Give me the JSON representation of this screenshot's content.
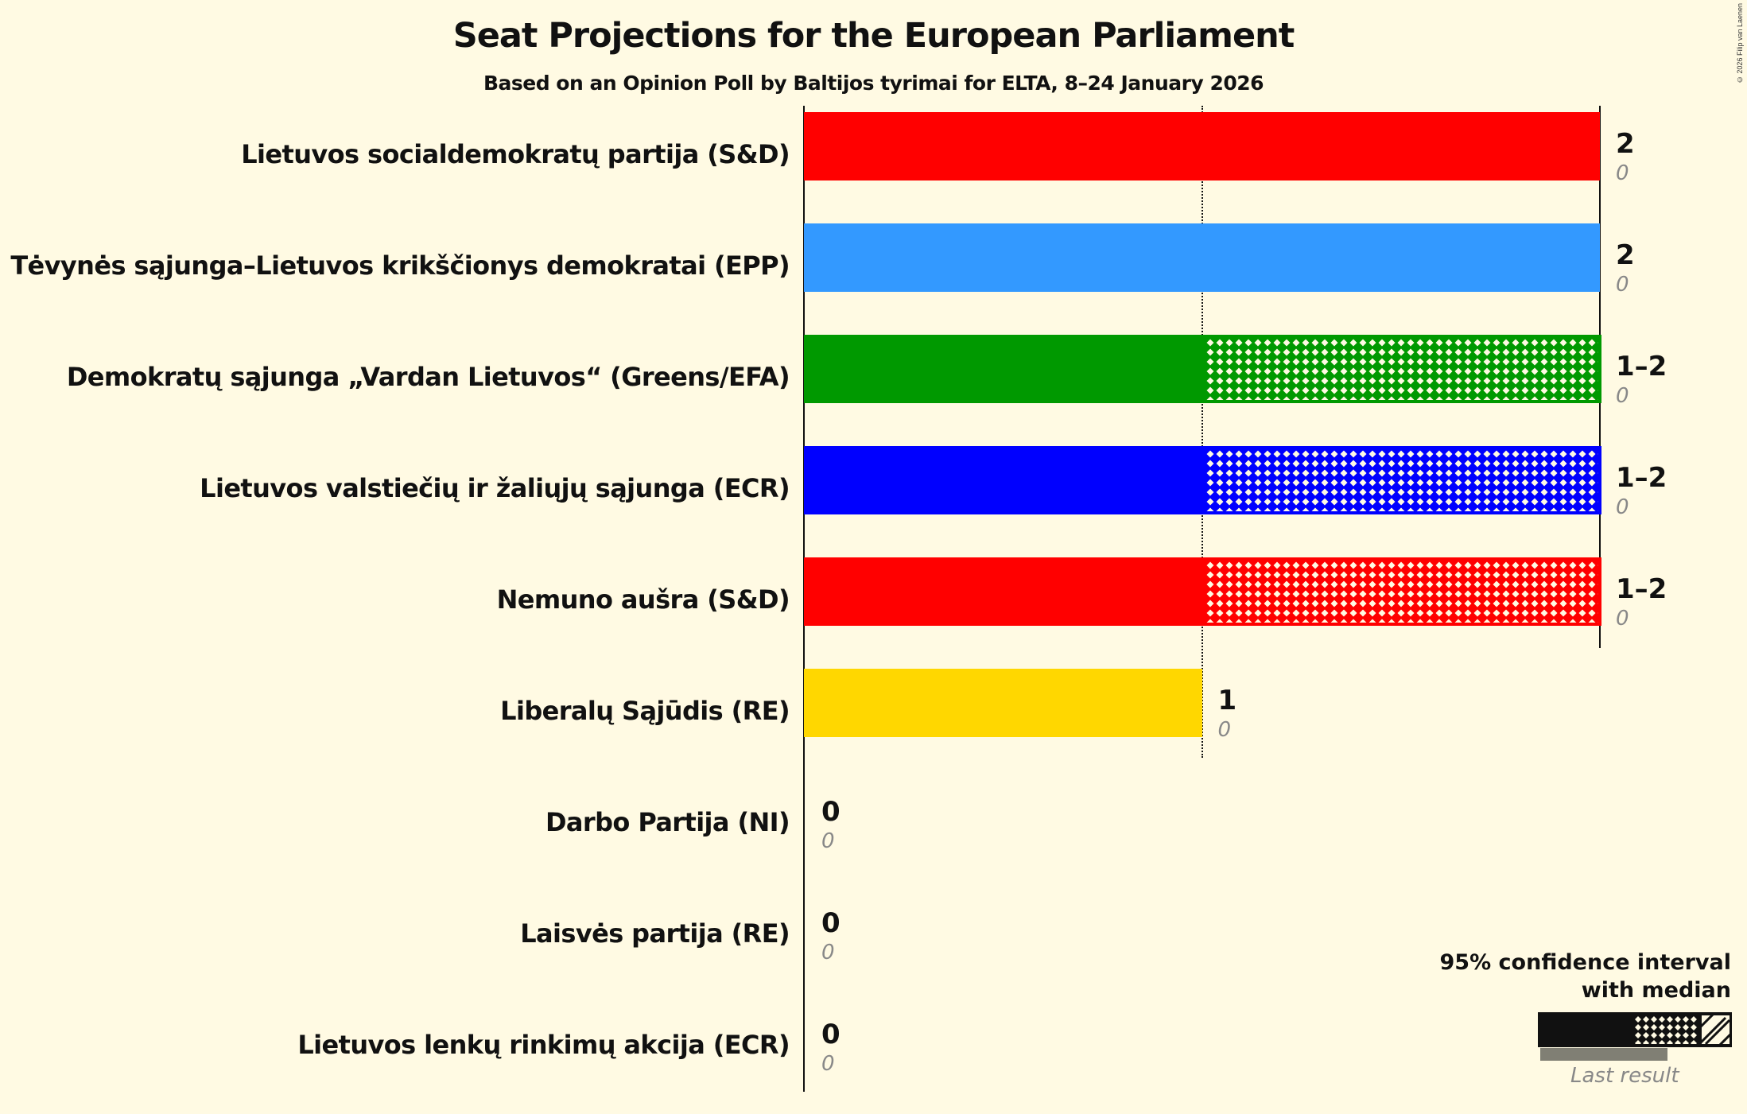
{
  "title": "Seat Projections for the European Parliament",
  "subtitle": "Based on an Opinion Poll by Baltijos tyrimai for ELTA, 8–24 January 2026",
  "copyright": "© 2026 Filip van Laenen",
  "legend": {
    "title_line1": "95% confidence interval",
    "title_line2": "with median",
    "last_result_label": "Last result"
  },
  "parties": [
    {
      "name": "Lietuvos socialdemokratų partija (S&D)",
      "range": "2",
      "last": "0",
      "color": "#ff0000",
      "low": 2,
      "high": 2
    },
    {
      "name": "Tėvynės sąjunga–Lietuvos krikščionys demokratai (EPP)",
      "range": "2",
      "last": "0",
      "color": "#3399ff",
      "low": 2,
      "high": 2
    },
    {
      "name": "Demokratų sąjunga „Vardan Lietuvos“ (Greens/EFA)",
      "range": "1–2",
      "last": "0",
      "color": "#009900",
      "low": 1,
      "high": 2
    },
    {
      "name": "Lietuvos valstiečių ir žaliųjų sąjunga (ECR)",
      "range": "1–2",
      "last": "0",
      "color": "#0000ff",
      "low": 1,
      "high": 2
    },
    {
      "name": "Nemuno aušra (S&D)",
      "range": "1–2",
      "last": "0",
      "color": "#ff0000",
      "low": 1,
      "high": 2
    },
    {
      "name": "Liberalų Sąjūdis (RE)",
      "range": "1",
      "last": "0",
      "color": "#ffd700",
      "low": 1,
      "high": 1
    },
    {
      "name": "Darbo Partija (NI)",
      "range": "0",
      "last": "0",
      "color": "#888888",
      "low": 0,
      "high": 0
    },
    {
      "name": "Laisvės partija (RE)",
      "range": "0",
      "last": "0",
      "color": "#888888",
      "low": 0,
      "high": 0
    },
    {
      "name": "Lietuvos lenkų rinkimų akcija (ECR)",
      "range": "0",
      "last": "0",
      "color": "#888888",
      "low": 0,
      "high": 0
    }
  ],
  "chart_data": {
    "type": "bar",
    "orientation": "horizontal",
    "title": "Seat Projections for the European Parliament",
    "subtitle": "Based on an Opinion Poll by Baltijos tyrimai for ELTA, 8–24 January 2026",
    "categories": [
      "Lietuvos socialdemokratų partija (S&D)",
      "Tėvynės sąjunga–Lietuvos krikščionys demokratai (EPP)",
      "Demokratų sąjunga „Vardan Lietuvos“ (Greens/EFA)",
      "Lietuvos valstiečių ir žaliųjų sąjunga (ECR)",
      "Nemuno aušra (S&D)",
      "Liberalų Sąjūdis (RE)",
      "Darbo Partija (NI)",
      "Laisvės partija (RE)",
      "Lietuvos lenkų rinkimų akcija (ECR)"
    ],
    "series": [
      {
        "name": "95% CI low",
        "values": [
          2,
          2,
          1,
          1,
          1,
          1,
          0,
          0,
          0
        ]
      },
      {
        "name": "95% CI high",
        "values": [
          2,
          2,
          2,
          2,
          2,
          1,
          0,
          0,
          0
        ]
      },
      {
        "name": "Last result",
        "values": [
          0,
          0,
          0,
          0,
          0,
          0,
          0,
          0,
          0
        ]
      }
    ],
    "value_labels": [
      "2",
      "2",
      "1–2",
      "1–2",
      "1–2",
      "1",
      "0",
      "0",
      "0"
    ],
    "xlim": [
      0,
      2
    ],
    "gridlines": [
      1,
      2
    ],
    "legend": [
      "95% confidence interval with median",
      "Last result"
    ],
    "legend_position": "bottom-right"
  }
}
